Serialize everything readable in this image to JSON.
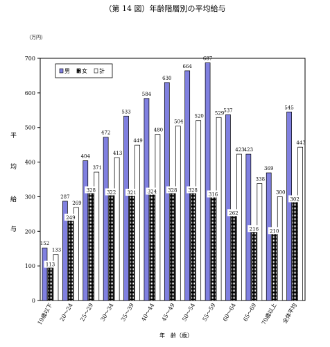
{
  "chart_data": {
    "type": "bar",
    "title": "（第 14 図）年齢階層別の平均給与",
    "unit_label": "（万円）",
    "ylabel": "平均給与",
    "xlabel": "年　齢（歳）",
    "ylim": [
      0,
      700
    ],
    "yticks": [
      0,
      100,
      200,
      300,
      400,
      500,
      600,
      700
    ],
    "grid": false,
    "legend_position": "top-left",
    "categories": [
      "19歳以下",
      "20～24",
      "25～29",
      "30～34",
      "35～39",
      "40～44",
      "45～49",
      "50～54",
      "55～59",
      "60～64",
      "65～69",
      "70歳以上",
      "全体平均"
    ],
    "series": [
      {
        "name": "男",
        "color": "#8080e0",
        "values": [
          152,
          287,
          404,
          472,
          533,
          584,
          630,
          664,
          687,
          537,
          423,
          369,
          545
        ]
      },
      {
        "name": "女",
        "color": "#000000",
        "values": [
          113,
          249,
          328,
          322,
          321,
          324,
          328,
          328,
          316,
          262,
          216,
          210,
          302
        ]
      },
      {
        "name": "計",
        "color": "#ffffff",
        "values": [
          133,
          269,
          371,
          413,
          449,
          480,
          504,
          520,
          529,
          423,
          338,
          300,
          443
        ]
      }
    ]
  }
}
